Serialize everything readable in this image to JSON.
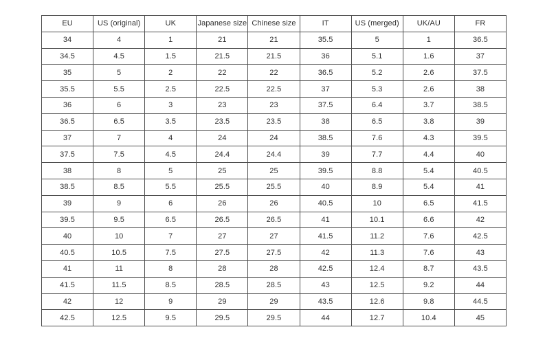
{
  "table": {
    "name": "shoe-size-conversion-table",
    "columns": [
      "EU",
      "US (original)",
      "UK",
      "Japanese size",
      "Chinese size",
      "IT",
      "US (merged)",
      "UK/AU",
      "FR"
    ],
    "rows": [
      [
        "34",
        "4",
        "1",
        "21",
        "21",
        "35.5",
        "5",
        "1",
        "36.5"
      ],
      [
        "34.5",
        "4.5",
        "1.5",
        "21.5",
        "21.5",
        "36",
        "5.1",
        "1.6",
        "37"
      ],
      [
        "35",
        "5",
        "2",
        "22",
        "22",
        "36.5",
        "5.2",
        "2.6",
        "37.5"
      ],
      [
        "35.5",
        "5.5",
        "2.5",
        "22.5",
        "22.5",
        "37",
        "5.3",
        "2.6",
        "38"
      ],
      [
        "36",
        "6",
        "3",
        "23",
        "23",
        "37.5",
        "6.4",
        "3.7",
        "38.5"
      ],
      [
        "36.5",
        "6.5",
        "3.5",
        "23.5",
        "23.5",
        "38",
        "6.5",
        "3.8",
        "39"
      ],
      [
        "37",
        "7",
        "4",
        "24",
        "24",
        "38.5",
        "7.6",
        "4.3",
        "39.5"
      ],
      [
        "37.5",
        "7.5",
        "4.5",
        "24.4",
        "24.4",
        "39",
        "7.7",
        "4.4",
        "40"
      ],
      [
        "38",
        "8",
        "5",
        "25",
        "25",
        "39.5",
        "8.8",
        "5.4",
        "40.5"
      ],
      [
        "38.5",
        "8.5",
        "5.5",
        "25.5",
        "25.5",
        "40",
        "8.9",
        "5.4",
        "41"
      ],
      [
        "39",
        "9",
        "6",
        "26",
        "26",
        "40.5",
        "10",
        "6.5",
        "41.5"
      ],
      [
        "39.5",
        "9.5",
        "6.5",
        "26.5",
        "26.5",
        "41",
        "10.1",
        "6.6",
        "42"
      ],
      [
        "40",
        "10",
        "7",
        "27",
        "27",
        "41.5",
        "11.2",
        "7.6",
        "42.5"
      ],
      [
        "40.5",
        "10.5",
        "7.5",
        "27.5",
        "27.5",
        "42",
        "11.3",
        "7.6",
        "43"
      ],
      [
        "41",
        "11",
        "8",
        "28",
        "28",
        "42.5",
        "12.4",
        "8.7",
        "43.5"
      ],
      [
        "41.5",
        "11.5",
        "8.5",
        "28.5",
        "28.5",
        "43",
        "12.5",
        "9.2",
        "44"
      ],
      [
        "42",
        "12",
        "9",
        "29",
        "29",
        "43.5",
        "12.6",
        "9.8",
        "44.5"
      ],
      [
        "42.5",
        "12.5",
        "9.5",
        "29.5",
        "29.5",
        "44",
        "12.7",
        "10.4",
        "45"
      ]
    ]
  },
  "colors": {
    "border": "#4d4d4d",
    "text": "#2e2e2e",
    "background": "#ffffff"
  },
  "chart_data": {
    "type": "table",
    "title": "",
    "columns": [
      "EU",
      "US (original)",
      "UK",
      "Japanese size",
      "Chinese size",
      "IT",
      "US (merged)",
      "UK/AU",
      "FR"
    ],
    "rows": [
      [
        34,
        4,
        1,
        21,
        21,
        35.5,
        5,
        1,
        36.5
      ],
      [
        34.5,
        4.5,
        1.5,
        21.5,
        21.5,
        36,
        5.1,
        1.6,
        37
      ],
      [
        35,
        5,
        2,
        22,
        22,
        36.5,
        5.2,
        2.6,
        37.5
      ],
      [
        35.5,
        5.5,
        2.5,
        22.5,
        22.5,
        37,
        5.3,
        2.6,
        38
      ],
      [
        36,
        6,
        3,
        23,
        23,
        37.5,
        6.4,
        3.7,
        38.5
      ],
      [
        36.5,
        6.5,
        3.5,
        23.5,
        23.5,
        38,
        6.5,
        3.8,
        39
      ],
      [
        37,
        7,
        4,
        24,
        24,
        38.5,
        7.6,
        4.3,
        39.5
      ],
      [
        37.5,
        7.5,
        4.5,
        24.4,
        24.4,
        39,
        7.7,
        4.4,
        40
      ],
      [
        38,
        8,
        5,
        25,
        25,
        39.5,
        8.8,
        5.4,
        40.5
      ],
      [
        38.5,
        8.5,
        5.5,
        25.5,
        25.5,
        40,
        8.9,
        5.4,
        41
      ],
      [
        39,
        9,
        6,
        26,
        26,
        40.5,
        10,
        6.5,
        41.5
      ],
      [
        39.5,
        9.5,
        6.5,
        26.5,
        26.5,
        41,
        10.1,
        6.6,
        42
      ],
      [
        40,
        10,
        7,
        27,
        27,
        41.5,
        11.2,
        7.6,
        42.5
      ],
      [
        40.5,
        10.5,
        7.5,
        27.5,
        27.5,
        42,
        11.3,
        7.6,
        43
      ],
      [
        41,
        11,
        8,
        28,
        28,
        42.5,
        12.4,
        8.7,
        43.5
      ],
      [
        41.5,
        11.5,
        8.5,
        28.5,
        28.5,
        43,
        12.5,
        9.2,
        44
      ],
      [
        42,
        12,
        9,
        29,
        29,
        43.5,
        12.6,
        9.8,
        44.5
      ],
      [
        42.5,
        12.5,
        9.5,
        29.5,
        29.5,
        44,
        12.7,
        10.4,
        45
      ]
    ]
  }
}
